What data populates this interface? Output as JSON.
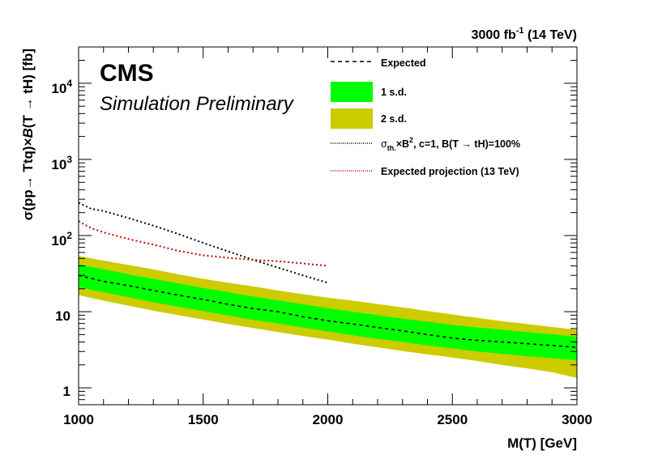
{
  "chart_data": {
    "type": "line",
    "title": "",
    "lumi_label": "3000 fb-1 (14 TeV)",
    "lumi_parts": {
      "main": "3000 fb",
      "sup": "-1",
      "rest": " (14 TeV)"
    },
    "experiment_label": "CMS",
    "status_label": "Simulation Preliminary",
    "xlabel": "M(T) [GeV]",
    "ylabel": "σ(pp→ Ttq)×B(T → tH) [fb]",
    "ylabel_parts": {
      "sigma": "σ(pp→ Ttq)×",
      "B": "B",
      "rest": "(T → tH) [fb]"
    },
    "xlim": [
      1000,
      3000
    ],
    "ylim": [
      0.6,
      30000
    ],
    "ylog": true,
    "grid": false,
    "legend_position": "top-right",
    "x_ticks": [
      {
        "value": 1000,
        "label": "1000"
      },
      {
        "value": 1500,
        "label": "1500"
      },
      {
        "value": 2000,
        "label": "2000"
      },
      {
        "value": 2500,
        "label": "2500"
      },
      {
        "value": 3000,
        "label": "3000"
      }
    ],
    "y_ticks": [
      {
        "value": 1,
        "label": "1",
        "sup": ""
      },
      {
        "value": 10,
        "label": "10",
        "sup": ""
      },
      {
        "value": 100,
        "label": "10",
        "sup": "2"
      },
      {
        "value": 1000,
        "label": "10",
        "sup": "3"
      },
      {
        "value": 10000,
        "label": "10",
        "sup": "4"
      }
    ],
    "legend": {
      "expected": "Expected",
      "one_sd": "1 s.d.",
      "two_sd": "2 s.d.",
      "theory": {
        "sigma": "σ",
        "sub": "th.",
        "mid": "×B",
        "sup": "2",
        "rest": ", c=1,  B(T → tH)=100%"
      },
      "projection": "Expected projection (13 TeV)"
    },
    "colors": {
      "expected": "#000000",
      "one_sd": "#00ff00",
      "two_sd": "#cccc00",
      "theory": "#000000",
      "projection": "#cc0000"
    },
    "series": [
      {
        "name": "Expected",
        "style": "dashed",
        "x": [
          1000,
          1100,
          1200,
          1300,
          1400,
          1500,
          1600,
          1700,
          1800,
          1900,
          2000,
          2100,
          2200,
          2300,
          2400,
          2500,
          2600,
          2700,
          2800,
          2900,
          3000
        ],
        "y": [
          30,
          25,
          22,
          19,
          16.5,
          14.5,
          12.5,
          11,
          10,
          8.6,
          7.6,
          6.9,
          6.2,
          5.6,
          5.0,
          4.5,
          4.2,
          4.0,
          3.8,
          3.6,
          3.4
        ]
      },
      {
        "name": "1 s.d.",
        "style": "band",
        "x": [
          1000,
          1100,
          1200,
          1300,
          1400,
          1500,
          1600,
          1700,
          1800,
          1900,
          2000,
          2100,
          2200,
          2300,
          2400,
          2500,
          2600,
          2700,
          2800,
          2900,
          3000
        ],
        "y_low": [
          21,
          18,
          15.5,
          13.3,
          11.6,
          10.2,
          8.9,
          7.8,
          7.0,
          6.2,
          5.5,
          4.9,
          4.4,
          4.0,
          3.6,
          3.3,
          3.0,
          2.8,
          2.6,
          2.45,
          2.3
        ],
        "y_high": [
          42,
          36,
          31,
          27,
          23.5,
          20.5,
          18,
          15.8,
          14.1,
          12.5,
          11.1,
          10,
          9.0,
          8.1,
          7.4,
          6.7,
          6.2,
          5.8,
          5.4,
          5.05,
          4.7
        ]
      },
      {
        "name": "2 s.d.",
        "style": "band",
        "x": [
          1000,
          1100,
          1200,
          1300,
          1400,
          1500,
          1600,
          1700,
          1800,
          1900,
          2000,
          2100,
          2200,
          2300,
          2400,
          2500,
          2600,
          2700,
          2800,
          2900,
          3000
        ],
        "y_low": [
          16.5,
          14,
          12,
          10.3,
          9.0,
          7.9,
          6.9,
          6.1,
          5.4,
          4.8,
          4.3,
          3.8,
          3.4,
          3.05,
          2.75,
          2.5,
          2.25,
          2.0,
          1.8,
          1.6,
          1.35
        ],
        "y_high": [
          54,
          47,
          41,
          36,
          31,
          27,
          24,
          21.5,
          19,
          17,
          15.3,
          14,
          12.6,
          11.4,
          10.2,
          9.2,
          8.3,
          7.5,
          6.9,
          6.3,
          5.8
        ]
      },
      {
        "name": "σth.×B2, c=1,  B(T → tH)=100%",
        "style": "dotted",
        "x": [
          1000,
          1050,
          1100,
          1200,
          1300,
          1400,
          1500,
          1600,
          1700,
          1800,
          1900,
          2000
        ],
        "y": [
          270,
          225,
          210,
          170,
          135,
          105,
          80,
          62,
          48,
          38,
          30,
          24
        ]
      },
      {
        "name": "Expected projection (13 TeV)",
        "style": "dotted",
        "x": [
          1000,
          1050,
          1100,
          1200,
          1300,
          1400,
          1500,
          1600,
          1700,
          1800,
          1900,
          2000
        ],
        "y": [
          155,
          125,
          110,
          90,
          76,
          63,
          55,
          51,
          48,
          46,
          43,
          40
        ]
      }
    ]
  }
}
